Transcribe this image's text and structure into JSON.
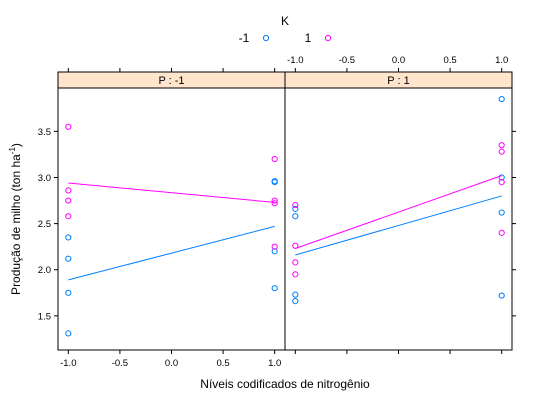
{
  "chart_data": {
    "type": "scatter",
    "xlabel": "Níveis codificados de nitrogênio",
    "ylabel": "Produção de milho (ton ha",
    "ylabel_sup": "-1",
    "ylabel_end": ")",
    "xlim": [
      -1.1,
      1.1
    ],
    "ylim": [
      1.13,
      3.97
    ],
    "x_ticks": [
      -1.0,
      -0.5,
      0.0,
      0.5,
      1.0
    ],
    "x_tick_labels": [
      "-1.0",
      "-0.5",
      "0.0",
      "0.5",
      "1.0"
    ],
    "y_ticks": [
      1.5,
      2.0,
      2.5,
      3.0,
      3.5
    ],
    "y_tick_labels": [
      "1.5",
      "2.0",
      "2.5",
      "3.0",
      "3.5"
    ],
    "legend": {
      "title": "K",
      "position": "top",
      "entries": [
        {
          "label": "-1",
          "color": "#0080ff"
        },
        {
          "label": "1",
          "color": "#ff00ff"
        }
      ]
    },
    "panels": [
      {
        "strip": "P : -1",
        "series": [
          {
            "name": "-1",
            "color": "#0080ff",
            "points": [
              [
                -1,
                2.35
              ],
              [
                -1,
                2.12
              ],
              [
                -1,
                1.75
              ],
              [
                -1,
                1.31
              ],
              [
                1,
                2.96
              ],
              [
                1,
                2.95
              ],
              [
                1,
                2.2
              ],
              [
                1,
                1.8
              ]
            ],
            "fit": [
              [
                -1,
                1.89
              ],
              [
                1,
                2.47
              ]
            ]
          },
          {
            "name": "1",
            "color": "#ff00ff",
            "points": [
              [
                -1,
                3.55
              ],
              [
                -1,
                2.86
              ],
              [
                -1,
                2.75
              ],
              [
                -1,
                2.58
              ],
              [
                1,
                3.2
              ],
              [
                1,
                2.75
              ],
              [
                1,
                2.72
              ],
              [
                1,
                2.25
              ]
            ],
            "fit": [
              [
                -1,
                2.94
              ],
              [
                1,
                2.73
              ]
            ]
          }
        ]
      },
      {
        "strip": "P : 1",
        "series": [
          {
            "name": "-1",
            "color": "#0080ff",
            "points": [
              [
                -1,
                2.66
              ],
              [
                -1,
                2.58
              ],
              [
                -1,
                1.73
              ],
              [
                -1,
                1.66
              ],
              [
                1,
                3.85
              ],
              [
                1,
                3.0
              ],
              [
                1,
                2.62
              ],
              [
                1,
                1.72
              ]
            ],
            "fit": [
              [
                -1,
                2.16
              ],
              [
                1,
                2.8
              ]
            ]
          },
          {
            "name": "1",
            "color": "#ff00ff",
            "points": [
              [
                -1,
                2.7
              ],
              [
                -1,
                2.26
              ],
              [
                -1,
                2.08
              ],
              [
                -1,
                1.95
              ],
              [
                1,
                3.35
              ],
              [
                1,
                3.28
              ],
              [
                1,
                2.95
              ],
              [
                1,
                2.4
              ]
            ],
            "fit": [
              [
                -1,
                2.23
              ],
              [
                1,
                3.02
              ]
            ]
          }
        ]
      }
    ]
  }
}
